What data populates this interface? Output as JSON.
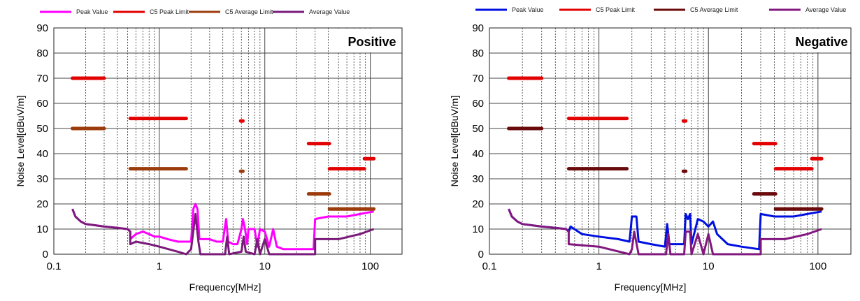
{
  "chart_data": [
    {
      "type": "line",
      "title": "Positive",
      "xlabel": "Frequency[MHz]",
      "ylabel": "Noise Level[dBuV/m]",
      "xscale": "log",
      "xlim": [
        0.1,
        200
      ],
      "ylim": [
        0,
        90
      ],
      "xticks": [
        "0.1",
        "1",
        "10",
        "100"
      ],
      "yticks": [
        "0",
        "10",
        "20",
        "30",
        "40",
        "50",
        "60",
        "70",
        "80",
        "90"
      ],
      "grid": true,
      "legend_position": "top",
      "series": [
        {
          "name": "Peak Value",
          "color": "#ff00ff",
          "style": "line",
          "points": [
            [
              0.15,
              18
            ],
            [
              0.16,
              15
            ],
            [
              0.18,
              13
            ],
            [
              0.2,
              12
            ],
            [
              0.25,
              11.5
            ],
            [
              0.3,
              11
            ],
            [
              0.4,
              10.5
            ],
            [
              0.5,
              10
            ],
            [
              0.53,
              9
            ],
            [
              0.53,
              6
            ],
            [
              0.6,
              8
            ],
            [
              0.7,
              9
            ],
            [
              0.8,
              8
            ],
            [
              0.9,
              7
            ],
            [
              1,
              7
            ],
            [
              1.2,
              6
            ],
            [
              1.5,
              5
            ],
            [
              1.8,
              5
            ],
            [
              2.0,
              5
            ],
            [
              2.1,
              18
            ],
            [
              2.2,
              20
            ],
            [
              2.3,
              18
            ],
            [
              2.4,
              6
            ],
            [
              3,
              6
            ],
            [
              3.5,
              5
            ],
            [
              4,
              5
            ],
            [
              4.3,
              14
            ],
            [
              4.5,
              5
            ],
            [
              5,
              4
            ],
            [
              5.5,
              4
            ],
            [
              6,
              10
            ],
            [
              6.2,
              14
            ],
            [
              6.5,
              10
            ],
            [
              6.8,
              4
            ],
            [
              7,
              10
            ],
            [
              8,
              10
            ],
            [
              8.5,
              3
            ],
            [
              9,
              10
            ],
            [
              10,
              9
            ],
            [
              11,
              3
            ],
            [
              12,
              10
            ],
            [
              13,
              3
            ],
            [
              15,
              2
            ],
            [
              20,
              2
            ],
            [
              25,
              2
            ],
            [
              29,
              2
            ],
            [
              30,
              14
            ],
            [
              40,
              15
            ],
            [
              60,
              15
            ],
            [
              80,
              16
            ],
            [
              108,
              17
            ]
          ]
        },
        {
          "name": "C5 Peak Limit",
          "color": "#e30000",
          "style": "segments",
          "segments": [
            [
              0.15,
              0.3,
              70
            ],
            [
              0.53,
              1.8,
              54
            ],
            [
              5.9,
              6.2,
              53
            ],
            [
              26,
              41,
              44
            ],
            [
              41,
              88,
              34
            ],
            [
              88,
              108,
              38
            ]
          ]
        },
        {
          "name": "C5 Average Limit",
          "color": "#9c3c0c",
          "style": "segments",
          "segments": [
            [
              0.15,
              0.3,
              50
            ],
            [
              0.53,
              1.8,
              34
            ],
            [
              5.9,
              6.2,
              33
            ],
            [
              26,
              41,
              24
            ],
            [
              41,
              108,
              18
            ]
          ]
        },
        {
          "name": "Average Value",
          "color": "#7a1a7a",
          "style": "line",
          "points": [
            [
              0.15,
              18
            ],
            [
              0.16,
              15
            ],
            [
              0.18,
              13
            ],
            [
              0.2,
              12
            ],
            [
              0.3,
              11
            ],
            [
              0.4,
              10.5
            ],
            [
              0.5,
              10
            ],
            [
              0.53,
              9
            ],
            [
              0.53,
              4
            ],
            [
              0.6,
              5
            ],
            [
              0.8,
              4
            ],
            [
              1,
              3
            ],
            [
              1.5,
              1
            ],
            [
              1.8,
              0
            ],
            [
              2.0,
              2
            ],
            [
              2.2,
              16
            ],
            [
              2.35,
              5
            ],
            [
              2.45,
              0
            ],
            [
              4.2,
              0
            ],
            [
              4.4,
              7
            ],
            [
              4.6,
              0
            ],
            [
              6,
              1
            ],
            [
              6.3,
              7
            ],
            [
              6.6,
              1
            ],
            [
              8,
              0
            ],
            [
              8.5,
              6
            ],
            [
              9,
              0
            ],
            [
              10,
              6
            ],
            [
              11,
              0
            ],
            [
              14,
              0
            ],
            [
              30,
              0
            ],
            [
              30,
              6
            ],
            [
              50,
              6
            ],
            [
              80,
              8
            ],
            [
              108,
              10
            ]
          ]
        }
      ]
    },
    {
      "type": "line",
      "title": "Negative",
      "xlabel": "Frequency[MHz]",
      "ylabel": "Noise Level[dBuV/m]",
      "xscale": "log",
      "xlim": [
        0.1,
        200
      ],
      "ylim": [
        0,
        90
      ],
      "xticks": [
        "0.1",
        "1",
        "10",
        "100"
      ],
      "yticks": [
        "0",
        "10",
        "20",
        "30",
        "40",
        "50",
        "60",
        "70",
        "80",
        "90"
      ],
      "grid": true,
      "legend_position": "top",
      "series": [
        {
          "name": "Peak Value",
          "color": "#0010e0",
          "style": "line",
          "points": [
            [
              0.15,
              18
            ],
            [
              0.16,
              15
            ],
            [
              0.18,
              13
            ],
            [
              0.2,
              12
            ],
            [
              0.3,
              11
            ],
            [
              0.4,
              10.5
            ],
            [
              0.5,
              10
            ],
            [
              0.53,
              9
            ],
            [
              0.55,
              11
            ],
            [
              0.7,
              8
            ],
            [
              1,
              7
            ],
            [
              1.5,
              6
            ],
            [
              1.9,
              5
            ],
            [
              2.0,
              15
            ],
            [
              2.2,
              15
            ],
            [
              2.3,
              5
            ],
            [
              3,
              4
            ],
            [
              4,
              3
            ],
            [
              4.2,
              12
            ],
            [
              4.4,
              4
            ],
            [
              5,
              4
            ],
            [
              6,
              4
            ],
            [
              6.2,
              16
            ],
            [
              6.5,
              14
            ],
            [
              6.8,
              16
            ],
            [
              7,
              4
            ],
            [
              8,
              14
            ],
            [
              9,
              13
            ],
            [
              10,
              11
            ],
            [
              11,
              13
            ],
            [
              12,
              8
            ],
            [
              15,
              4
            ],
            [
              20,
              3
            ],
            [
              29,
              2
            ],
            [
              30,
              16
            ],
            [
              40,
              15
            ],
            [
              60,
              15
            ],
            [
              80,
              16
            ],
            [
              108,
              17
            ]
          ]
        },
        {
          "name": "C5 Peak Limit",
          "color": "#e30000",
          "style": "segments",
          "segments": [
            [
              0.15,
              0.3,
              70
            ],
            [
              0.53,
              1.8,
              54
            ],
            [
              5.9,
              6.2,
              53
            ],
            [
              26,
              41,
              44
            ],
            [
              41,
              88,
              34
            ],
            [
              88,
              108,
              38
            ]
          ]
        },
        {
          "name": "C5 Average Limit",
          "color": "#6a0a0a",
          "style": "segments",
          "segments": [
            [
              0.15,
              0.3,
              50
            ],
            [
              0.53,
              1.8,
              34
            ],
            [
              5.9,
              6.2,
              33
            ],
            [
              26,
              41,
              24
            ],
            [
              41,
              108,
              18
            ]
          ]
        },
        {
          "name": "Average Value",
          "color": "#82187f",
          "style": "line",
          "points": [
            [
              0.15,
              18
            ],
            [
              0.16,
              15
            ],
            [
              0.18,
              13
            ],
            [
              0.2,
              12
            ],
            [
              0.3,
              11
            ],
            [
              0.4,
              10.5
            ],
            [
              0.5,
              10
            ],
            [
              0.53,
              9
            ],
            [
              0.53,
              4
            ],
            [
              1,
              3
            ],
            [
              1.9,
              0
            ],
            [
              2.0,
              2
            ],
            [
              2.1,
              9
            ],
            [
              2.3,
              0
            ],
            [
              4.1,
              0
            ],
            [
              4.3,
              8
            ],
            [
              4.5,
              0
            ],
            [
              6,
              0
            ],
            [
              6.2,
              9
            ],
            [
              6.8,
              9
            ],
            [
              7,
              0
            ],
            [
              8,
              8
            ],
            [
              9,
              0
            ],
            [
              10,
              8
            ],
            [
              11,
              0
            ],
            [
              30,
              0
            ],
            [
              30,
              6
            ],
            [
              50,
              6
            ],
            [
              80,
              8
            ],
            [
              108,
              10
            ]
          ]
        }
      ]
    }
  ]
}
